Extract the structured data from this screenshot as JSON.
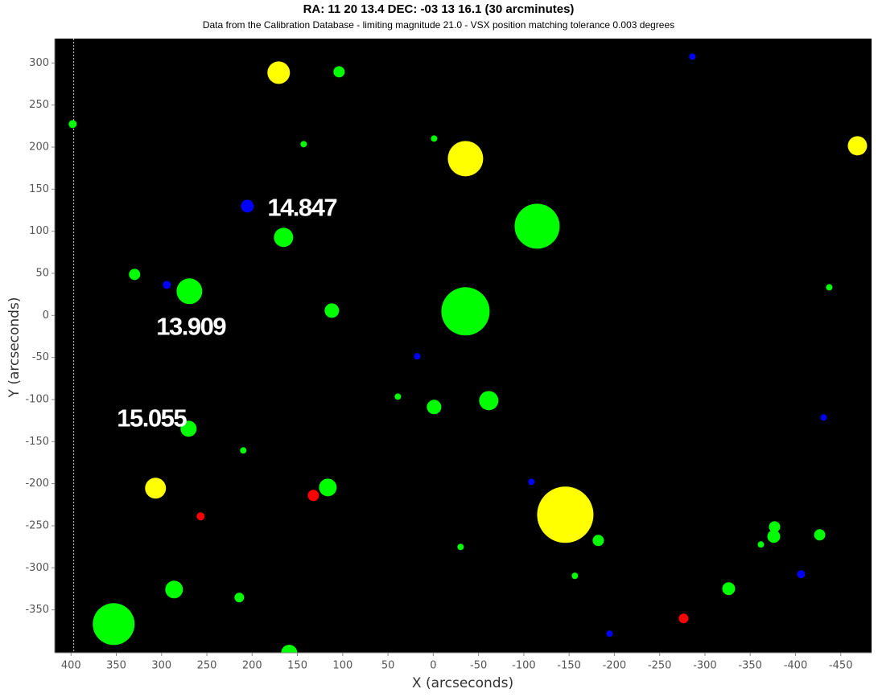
{
  "chart_data": {
    "type": "scatter",
    "title": "RA: 11 20 13.4  DEC: -03 13 16.1 (30 arcminutes)",
    "subtitle": "Data from the Calibration Database - limiting magnitude 21.0 - VSX position matching tolerance 0.003 degrees",
    "x_label": "X (arcseconds)",
    "y_label": "Y (arcseconds)",
    "xlim": [
      418,
      -484
    ],
    "ylim": [
      -401,
      329
    ],
    "xticks": [
      400,
      350,
      300,
      250,
      200,
      150,
      100,
      50,
      0,
      -50,
      -100,
      -150,
      -200,
      -250,
      -300,
      -350,
      -400,
      -450
    ],
    "yticks": [
      -350,
      -300,
      -250,
      -200,
      -150,
      -100,
      -50,
      0,
      50,
      100,
      150,
      200,
      250,
      300
    ],
    "background": "#000000",
    "reference_x": 397,
    "series": [
      {
        "color": "#ffff00",
        "x": [
          170.7,
          -35.6,
          -468.4,
          306.7,
          -145.8
        ],
        "values": [
          288.5,
          186.3,
          201.6,
          -205.4,
          -236.9
        ],
        "sizes": [
          14,
          22,
          12,
          13,
          35
        ]
      },
      {
        "color": "#00ff00",
        "x": [
          104,
          398.2,
          143.1,
          -0.9,
          -114.7,
          165.3,
          329.8,
          269.3,
          -437.3,
          -35.6,
          112,
          39.1,
          -0.9,
          -61.3,
          270.2,
          209.8,
          116.4,
          -30.2,
          -182.2,
          -156.4,
          -376.9,
          -376,
          -361.8,
          -426.7,
          -326.2,
          286.2,
          214.2,
          352.9,
          159.1
        ],
        "values": [
          289.5,
          227.4,
          203.5,
          210.2,
          106,
          92.7,
          48.7,
          28.7,
          33.4,
          4.8,
          5.7,
          -96.5,
          -108.9,
          -101.3,
          -134.7,
          -160.5,
          -204.5,
          -275.2,
          -267.5,
          -309.5,
          -251.3,
          -262.7,
          -272.3,
          -260.8,
          -324.8,
          -325.8,
          -335.3,
          -366.9,
          -401
        ],
        "sizes": [
          7,
          5,
          4,
          4,
          28,
          12,
          7,
          16,
          4,
          30,
          9,
          4,
          9,
          12,
          10,
          4,
          11,
          4,
          7,
          4,
          7,
          8,
          4,
          7,
          8,
          11,
          6,
          26,
          10
        ]
      },
      {
        "color": "#0000ff",
        "x": [
          -286.2,
          205.3,
          294.2,
          17.8,
          -431.1,
          -108.4,
          -406.2,
          -194.7
        ],
        "values": [
          307.6,
          129.9,
          36.3,
          -48.7,
          -121.3,
          -197.8,
          -307.6,
          -378.3
        ],
        "sizes": [
          4,
          8,
          5,
          4,
          4,
          4,
          5,
          4
        ]
      },
      {
        "color": "#ff0000",
        "x": [
          256.9,
          132.4,
          -276.4
        ],
        "values": [
          -238.8,
          -214,
          -360.2
        ],
        "sizes": [
          5,
          7,
          6
        ]
      }
    ],
    "annotations": [
      {
        "text": "14.847",
        "x": 183.1,
        "y": 126.1
      },
      {
        "text": "13.909",
        "x": 305.8,
        "y": -15.3
      },
      {
        "text": "15.055",
        "x": 349.3,
        "y": -124.2
      }
    ]
  }
}
